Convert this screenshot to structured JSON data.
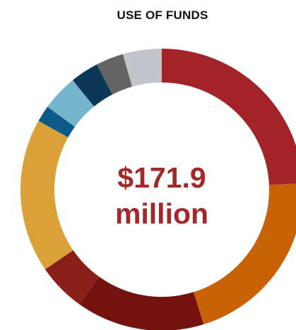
{
  "chart_data": {
    "type": "pie",
    "title": "USE OF FUNDS",
    "center_label": {
      "line1": "$171.9",
      "line2": "million"
    },
    "values": [
      24.6,
      21.2,
      14.9,
      5.6,
      17.9,
      1.9,
      4.2,
      3.3,
      3.2,
      4.5
    ],
    "colors": [
      "#a32428",
      "#c96207",
      "#74130e",
      "#8a1f19",
      "#d9a138",
      "#0c5a8c",
      "#75b6cd",
      "#0b3857",
      "#646464",
      "#c2c6cb"
    ]
  }
}
